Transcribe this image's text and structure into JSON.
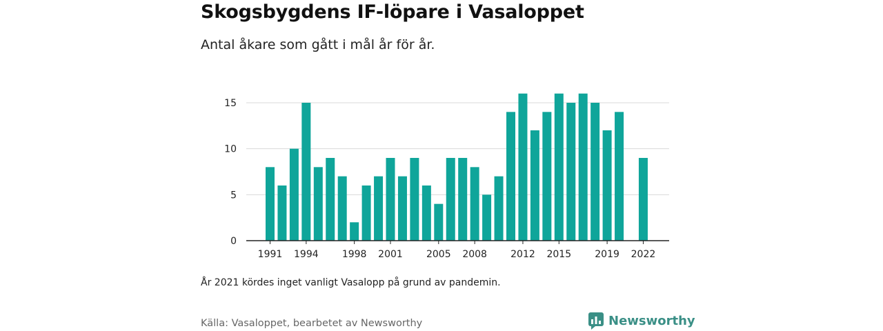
{
  "header": {
    "title": "Skogsbygdens IF-löpare i Vasaloppet",
    "subtitle": "Antal åkare som gått i mål år för år."
  },
  "footer": {
    "note": "År 2021 kördes inget vanligt Vasalopp på grund av pandemin.",
    "source": "Källa: Vasaloppet, bearbetet av Newsworthy",
    "brand": "Newsworthy"
  },
  "colors": {
    "bar": "#0fa59a",
    "brand": "#3a8f86",
    "grid": "#d9d9d9",
    "axis": "#222222"
  },
  "chart_data": {
    "type": "bar",
    "categories": [
      1991,
      1992,
      1993,
      1994,
      1995,
      1996,
      1997,
      1998,
      1999,
      2000,
      2001,
      2002,
      2003,
      2004,
      2005,
      2006,
      2007,
      2008,
      2009,
      2010,
      2011,
      2012,
      2013,
      2014,
      2015,
      2016,
      2017,
      2018,
      2019,
      2020,
      2021,
      2022
    ],
    "values": [
      8,
      6,
      10,
      15,
      8,
      9,
      7,
      2,
      6,
      7,
      9,
      7,
      9,
      6,
      4,
      9,
      9,
      8,
      5,
      7,
      14,
      16,
      12,
      14,
      16,
      15,
      16,
      15,
      12,
      14,
      null,
      9
    ],
    "x_tick_labels": [
      "1991",
      "1994",
      "1998",
      "2001",
      "2005",
      "2008",
      "2012",
      "2015",
      "2019",
      "2022"
    ],
    "y_ticks": [
      0,
      5,
      10,
      15
    ],
    "ylim": [
      0,
      17
    ],
    "grid": true
  }
}
